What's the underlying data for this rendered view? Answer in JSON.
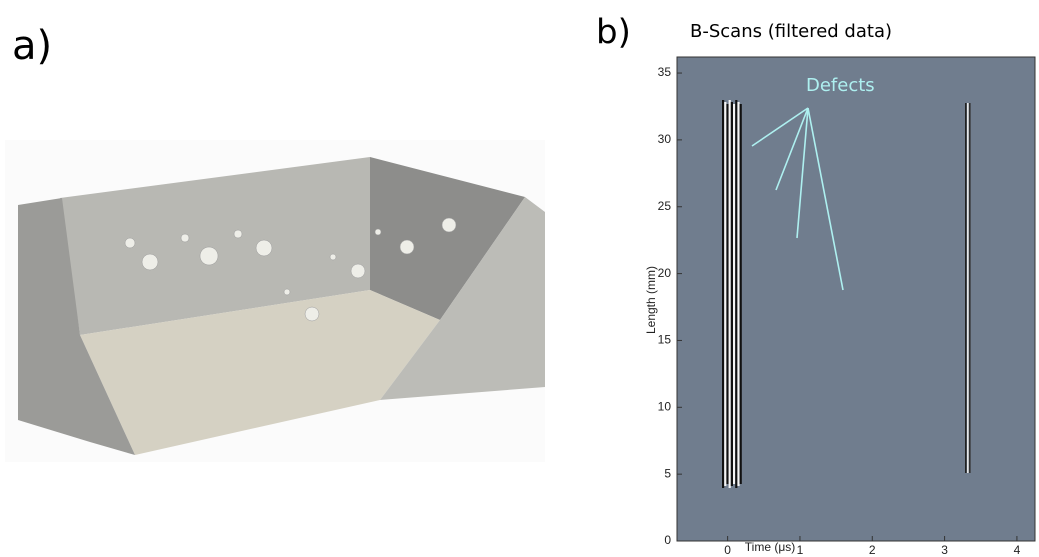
{
  "panel_labels": [
    "a)",
    "b)"
  ],
  "chart_data": {
    "type": "bscan",
    "title": "B-Scans (filtered data)",
    "annotation": "Defects",
    "xlabel": "Time (μs)",
    "ylabel": "Length (mm)",
    "xlim": [
      -0.7,
      4.25
    ],
    "ylim": [
      0,
      36.2
    ],
    "xticks": [
      0,
      1,
      2,
      3,
      4
    ],
    "yticks": [
      0,
      5,
      10,
      15,
      20,
      25,
      30,
      35
    ]
  }
}
